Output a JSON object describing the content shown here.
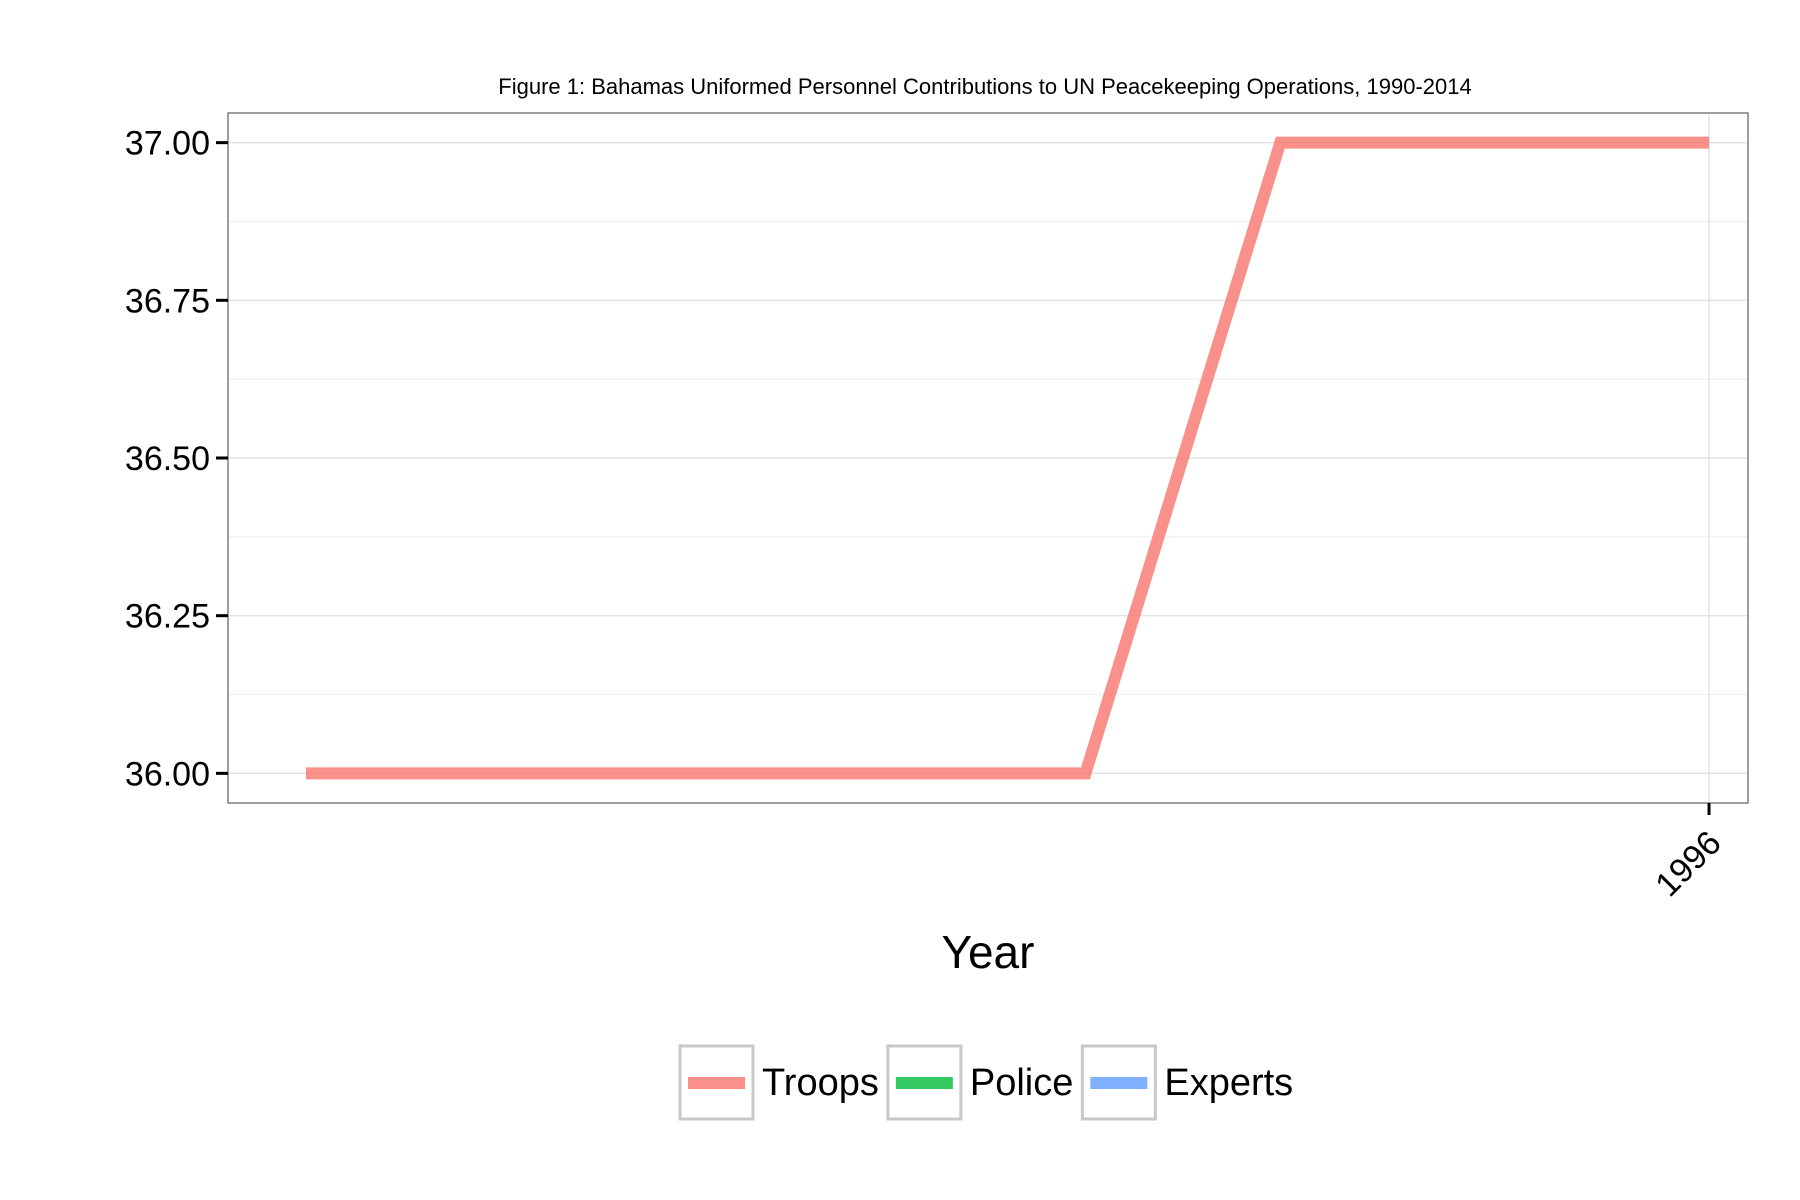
{
  "chart_data": {
    "type": "line",
    "title": "Figure 1: Bahamas Uniformed Personnel Contributions to UN Peacekeeping Operations, 1990-2014",
    "xlabel": "Year",
    "ylabel": "",
    "ylim": [
      35.953,
      37.047
    ],
    "y_ticks": [
      36.0,
      36.25,
      36.5,
      36.75,
      37.0
    ],
    "y_tick_labels": [
      "36.00",
      "36.25",
      "36.50",
      "36.75",
      "37.00"
    ],
    "x_ticks": [
      1996
    ],
    "x_tick_labels": [
      "1996"
    ],
    "xlim": [
      1994.1,
      1996.05
    ],
    "grid": true,
    "legend_position": "bottom",
    "series": [
      {
        "name": "Troops",
        "color": "#F8766D",
        "x": [
          1994.2,
          1995.2,
          1995.45,
          1996.0
        ],
        "values": [
          36.0,
          36.0,
          37.0,
          37.0
        ]
      },
      {
        "name": "Police",
        "color": "#00BA38",
        "x": [],
        "values": []
      },
      {
        "name": "Experts",
        "color": "#619CFF",
        "x": [],
        "values": []
      }
    ]
  }
}
